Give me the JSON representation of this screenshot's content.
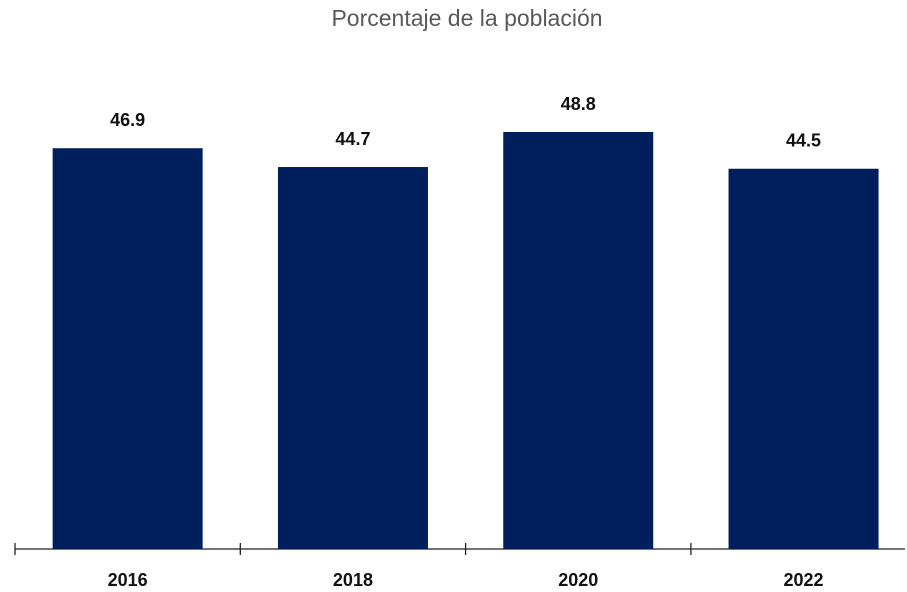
{
  "chart_data": {
    "type": "bar",
    "title": "Porcentaje de la población",
    "categories": [
      "2016",
      "2018",
      "2020",
      "2022"
    ],
    "values": [
      46.9,
      44.7,
      48.8,
      44.5
    ],
    "color": "#001f5c"
  }
}
